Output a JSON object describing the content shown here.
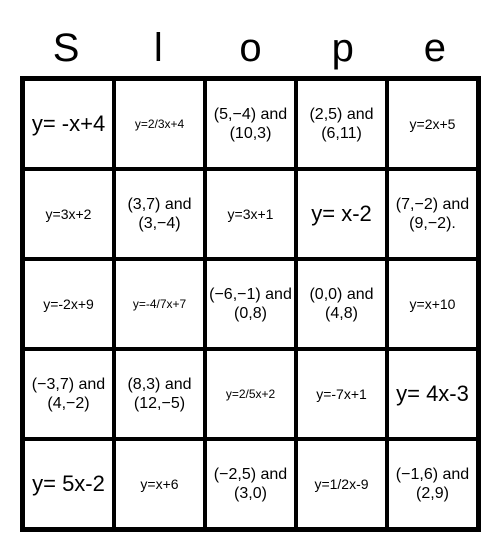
{
  "title_letters": [
    "S",
    "l",
    "o",
    "p",
    "e"
  ],
  "grid": {
    "type": "table",
    "columns": 5,
    "rows": 5,
    "border_color": "#000000",
    "background_color": "#ffffff",
    "text_color": "#000000",
    "cells": [
      [
        {
          "text": "y= -x+4",
          "size": "large"
        },
        {
          "text": "y=2/3x+4",
          "size": "xsmall"
        },
        {
          "text": "(5,−4) and (10,3)",
          "size": "med"
        },
        {
          "text": "(2,5) and (6,11)",
          "size": "med"
        },
        {
          "text": "y=2x+5",
          "size": "small"
        }
      ],
      [
        {
          "text": "y=3x+2",
          "size": "small"
        },
        {
          "text": "(3,7) and (3,−4)",
          "size": "med"
        },
        {
          "text": "y=3x+1",
          "size": "small"
        },
        {
          "text": "y= x-2",
          "size": "large"
        },
        {
          "text": "(7,−2) and (9,−2).",
          "size": "med"
        }
      ],
      [
        {
          "text": "y=-2x+9",
          "size": "small"
        },
        {
          "text": "y=-4/7x+7",
          "size": "xsmall"
        },
        {
          "text": "(−6,−1) and (0,8)",
          "size": "med"
        },
        {
          "text": "(0,0) and (4,8)",
          "size": "med"
        },
        {
          "text": "y=x+10",
          "size": "small"
        }
      ],
      [
        {
          "text": "(−3,7) and (4,−2)",
          "size": "med"
        },
        {
          "text": "(8,3) and (12,−5)",
          "size": "med"
        },
        {
          "text": "y=2/5x+2",
          "size": "xsmall"
        },
        {
          "text": "y=-7x+1",
          "size": "small"
        },
        {
          "text": "y= 4x-3",
          "size": "large"
        }
      ],
      [
        {
          "text": "y= 5x-2",
          "size": "large"
        },
        {
          "text": "y=x+6",
          "size": "small"
        },
        {
          "text": "(−2,5) and (3,0)",
          "size": "med"
        },
        {
          "text": "y=1/2x-9",
          "size": "small"
        },
        {
          "text": "(−1,6) and (2,9)",
          "size": "med"
        }
      ]
    ]
  }
}
